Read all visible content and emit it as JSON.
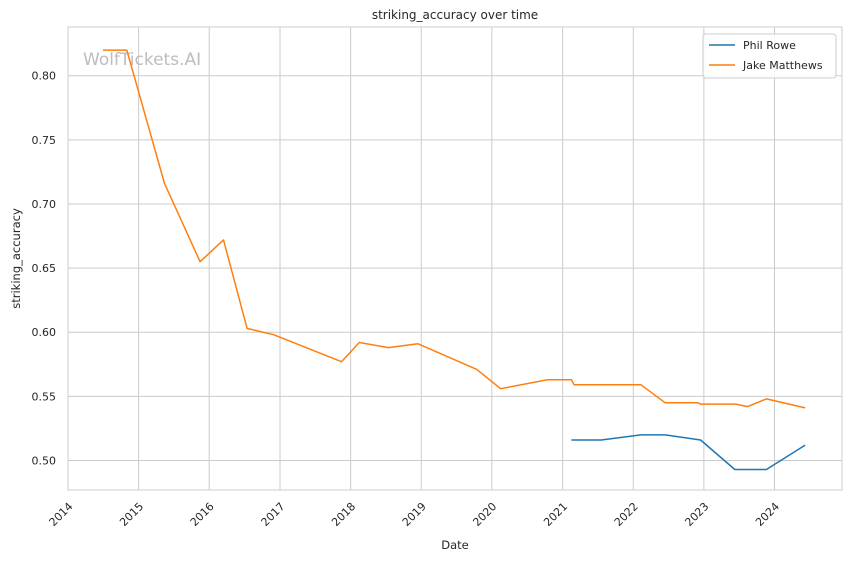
{
  "chart_data": {
    "type": "line",
    "title": "striking_accuracy over time",
    "xlabel": "Date",
    "ylabel": "striking_accuracy",
    "watermark": "WolfTickets.AI",
    "xlim": [
      "2014-01-01",
      "2024-12-15"
    ],
    "ylim": [
      0.477,
      0.838
    ],
    "x_ticks": [
      "2014",
      "2015",
      "2016",
      "2017",
      "2018",
      "2019",
      "2020",
      "2021",
      "2022",
      "2023",
      "2024"
    ],
    "y_ticks": [
      "0.50",
      "0.55",
      "0.60",
      "0.65",
      "0.70",
      "0.75",
      "0.80"
    ],
    "grid": true,
    "legend_position": "top-right",
    "colors": {
      "Phil Rowe": "#1f77b4",
      "Jake Matthews": "#ff7f0e"
    },
    "series": [
      {
        "name": "Phil Rowe",
        "x": [
          "2021-02-15",
          "2021-07-20",
          "2022-02-10",
          "2022-06-15",
          "2022-12-15",
          "2023-06-10",
          "2023-11-20",
          "2024-06-08"
        ],
        "y": [
          0.516,
          0.516,
          0.52,
          0.52,
          0.516,
          0.493,
          0.493,
          0.512
        ]
      },
      {
        "name": "Jake Matthews",
        "x": [
          "2014-07-01",
          "2014-11-01",
          "2015-05-15",
          "2015-11-15",
          "2016-03-15",
          "2016-07-15",
          "2016-12-01",
          "2017-11-15",
          "2018-02-15",
          "2018-07-15",
          "2018-12-15",
          "2019-10-15",
          "2020-02-15",
          "2020-10-15",
          "2021-02-15",
          "2021-03-01",
          "2022-02-10",
          "2022-06-15",
          "2022-12-01",
          "2022-12-15",
          "2023-06-15",
          "2023-08-15",
          "2023-11-20",
          "2024-06-08"
        ],
        "y": [
          0.82,
          0.82,
          0.716,
          0.655,
          0.672,
          0.603,
          0.598,
          0.577,
          0.592,
          0.588,
          0.591,
          0.571,
          0.556,
          0.563,
          0.563,
          0.559,
          0.559,
          0.545,
          0.545,
          0.544,
          0.544,
          0.542,
          0.548,
          0.541
        ]
      }
    ]
  }
}
